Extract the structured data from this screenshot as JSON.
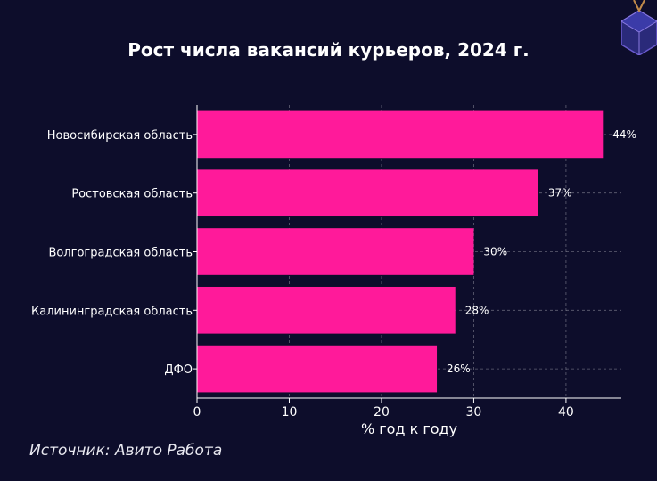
{
  "chart_data": {
    "type": "bar",
    "orientation": "horizontal",
    "title": "Рост числа вакансий курьеров, 2024 г.",
    "xlabel": "% год к году",
    "ylabel": "",
    "categories": [
      "Новосибирская область",
      "Ростовская область",
      "Волгоградская область",
      "Калининградская область",
      "ДФО"
    ],
    "values": [
      44,
      37,
      30,
      28,
      26
    ],
    "data_labels": [
      "44%",
      "37%",
      "30%",
      "28%",
      "26%"
    ],
    "xlim": [
      0,
      46
    ],
    "xticks": [
      0,
      10,
      20,
      30,
      40
    ],
    "grid": true,
    "bar_color": "#ff1a9a",
    "background_color": "#0d0d2b"
  },
  "footer": {
    "source": "Источник: Авито Работа"
  }
}
